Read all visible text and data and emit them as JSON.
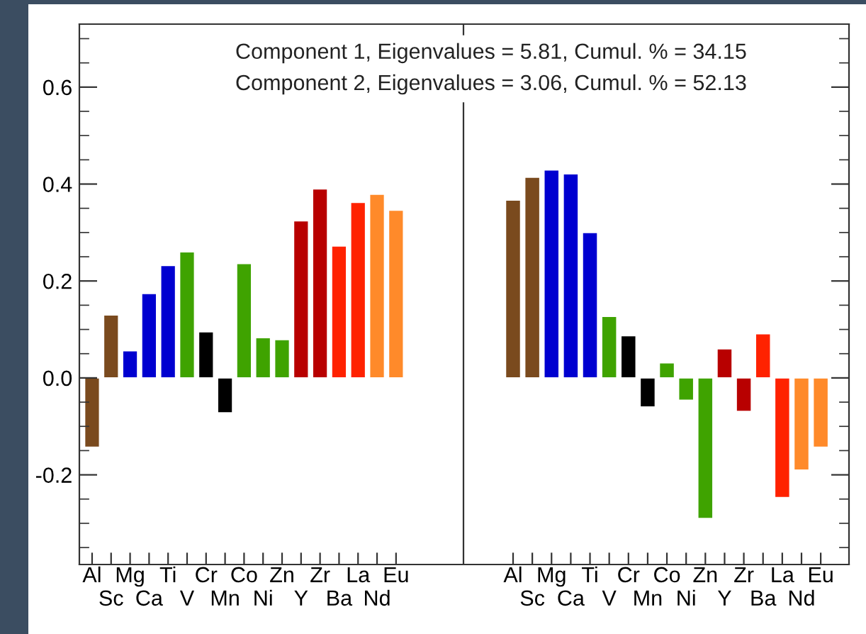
{
  "chart_data": [
    {
      "type": "bar",
      "categories": [
        "Al",
        "Sc",
        "Mg",
        "Ca",
        "Ti",
        "V",
        "Cr",
        "Mn",
        "Co",
        "Ni",
        "Zn",
        "Y",
        "Zr",
        "Ba",
        "La",
        "Nd",
        "Eu"
      ],
      "values": [
        -0.143,
        0.13,
        0.056,
        0.174,
        0.232,
        0.26,
        0.095,
        -0.072,
        0.236,
        0.083,
        0.079,
        0.324,
        0.39,
        0.272,
        0.362,
        0.379,
        0.346
      ],
      "colors": [
        "#7a4a1e",
        "#7a4a1e",
        "#0000d0",
        "#0000d0",
        "#0000d0",
        "#3fa300",
        "#000000",
        "#000000",
        "#3fa300",
        "#3fa300",
        "#3fa300",
        "#b80000",
        "#b80000",
        "#ff2200",
        "#ff2200",
        "#ff8a2a",
        "#ff8a2a"
      ],
      "ylim": [
        -0.385,
        0.73
      ],
      "yticks": [
        -0.2,
        {
          "value": 0,
          "label": "0.0"
        },
        0.2,
        0.4,
        0.6
      ],
      "grid": false,
      "legend": false
    },
    {
      "type": "bar",
      "categories": [
        "Al",
        "Sc",
        "Mg",
        "Ca",
        "Ti",
        "V",
        "Cr",
        "Mn",
        "Co",
        "Ni",
        "Zn",
        "Y",
        "Zr",
        "Ba",
        "La",
        "Nd",
        "Eu"
      ],
      "values": [
        0.367,
        0.414,
        0.429,
        0.421,
        0.3,
        0.127,
        0.087,
        -0.06,
        0.031,
        -0.046,
        -0.29,
        0.06,
        -0.069,
        0.091,
        -0.247,
        -0.19,
        -0.143
      ],
      "colors": [
        "#7a4a1e",
        "#7a4a1e",
        "#0000d0",
        "#0000d0",
        "#0000d0",
        "#3fa300",
        "#000000",
        "#000000",
        "#3fa300",
        "#3fa300",
        "#3fa300",
        "#b80000",
        "#b80000",
        "#ff2200",
        "#ff2200",
        "#ff8a2a",
        "#ff8a2a"
      ],
      "ylim": [
        -0.385,
        0.73
      ],
      "yticks": [
        -0.2,
        0,
        0.2,
        0.4,
        0.6
      ],
      "tick_labels": "x",
      "grid": false,
      "legend": false,
      "annotations": [
        "Component 1, Eigenvalues = 5.81, Cumul. % = 34.15",
        "Component 2, Eigenvalues = 3.06, Cumul. % = 52.13"
      ]
    }
  ]
}
